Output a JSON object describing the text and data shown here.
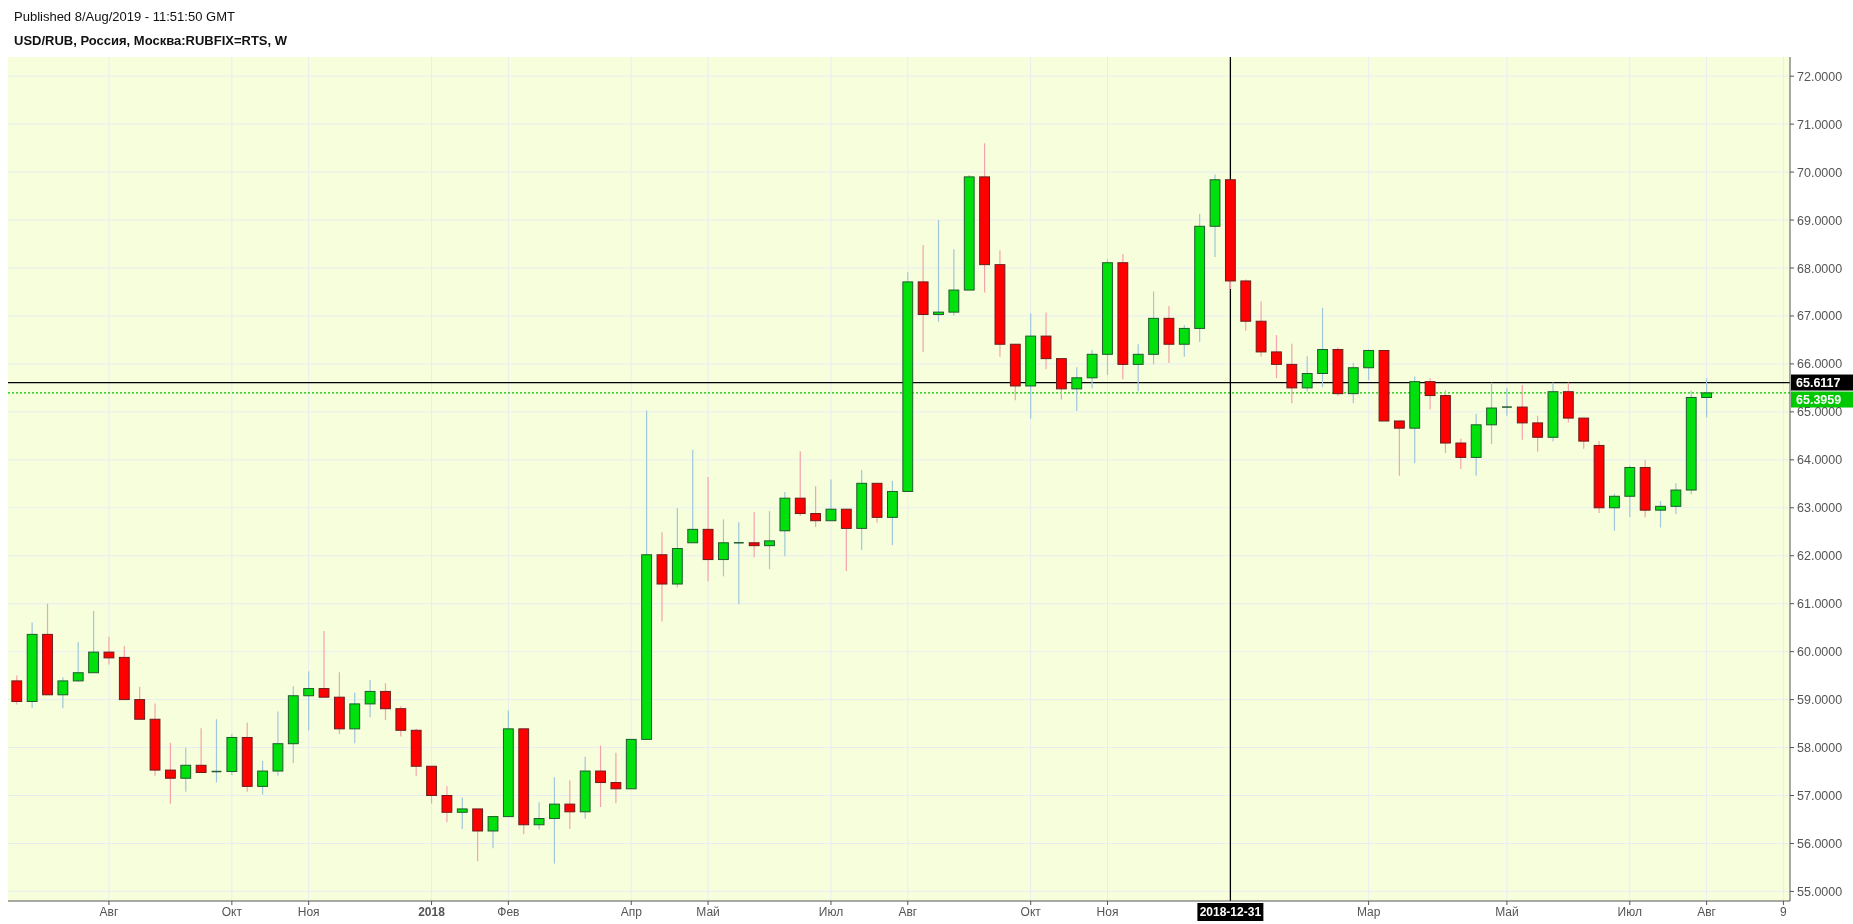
{
  "chart_data": {
    "type": "candlestick",
    "title": "USD/RUB, Россия, Москва:RUBFIX=RTS, W",
    "annotations": [
      "Published 8/Aug/2019 - 11:51:50 GMT"
    ],
    "x": [
      "2017-06-26",
      "2017-07-03",
      "2017-07-10",
      "2017-07-17",
      "2017-07-24",
      "2017-07-31",
      "2017-08-07",
      "2017-08-14",
      "2017-08-21",
      "2017-08-28",
      "2017-09-04",
      "2017-09-11",
      "2017-09-18",
      "2017-09-25",
      "2017-10-02",
      "2017-10-09",
      "2017-10-16",
      "2017-10-23",
      "2017-10-30",
      "2017-11-06",
      "2017-11-13",
      "2017-11-20",
      "2017-11-27",
      "2017-12-04",
      "2017-12-11",
      "2017-12-18",
      "2017-12-25",
      "2018-01-01",
      "2018-01-08",
      "2018-01-15",
      "2018-01-22",
      "2018-01-29",
      "2018-02-05",
      "2018-02-12",
      "2018-02-19",
      "2018-02-26",
      "2018-03-05",
      "2018-03-12",
      "2018-03-19",
      "2018-03-26",
      "2018-04-02",
      "2018-04-09",
      "2018-04-16",
      "2018-04-23",
      "2018-04-30",
      "2018-05-07",
      "2018-05-14",
      "2018-05-21",
      "2018-05-28",
      "2018-06-04",
      "2018-06-11",
      "2018-06-18",
      "2018-06-25",
      "2018-07-02",
      "2018-07-09",
      "2018-07-16",
      "2018-07-23",
      "2018-07-30",
      "2018-08-06",
      "2018-08-13",
      "2018-08-20",
      "2018-08-27",
      "2018-09-03",
      "2018-09-10",
      "2018-09-17",
      "2018-09-24",
      "2018-10-01",
      "2018-10-08",
      "2018-10-15",
      "2018-10-22",
      "2018-10-29",
      "2018-11-05",
      "2018-11-12",
      "2018-11-19",
      "2018-11-26",
      "2018-12-03",
      "2018-12-10",
      "2018-12-17",
      "2018-12-24",
      "2018-12-31",
      "2019-01-07",
      "2019-01-14",
      "2019-01-21",
      "2019-01-28",
      "2019-02-04",
      "2019-02-11",
      "2019-02-18",
      "2019-02-25",
      "2019-03-04",
      "2019-03-11",
      "2019-03-18",
      "2019-03-25",
      "2019-04-01",
      "2019-04-08",
      "2019-04-15",
      "2019-04-22",
      "2019-04-29",
      "2019-05-06",
      "2019-05-13",
      "2019-05-20",
      "2019-05-27",
      "2019-06-03",
      "2019-06-10",
      "2019-06-17",
      "2019-06-24",
      "2019-07-01",
      "2019-07-08",
      "2019-07-15",
      "2019-07-22",
      "2019-07-29",
      "2019-08-05"
    ],
    "ohlc": [
      [
        59.39,
        59.5,
        58.9,
        58.96
      ],
      [
        58.96,
        60.61,
        58.83,
        60.36
      ],
      [
        60.36,
        61.0,
        59.1,
        59.1
      ],
      [
        59.1,
        59.46,
        58.82,
        59.39
      ],
      [
        59.39,
        60.2,
        59.37,
        59.56
      ],
      [
        59.56,
        60.85,
        59.56,
        59.99
      ],
      [
        59.99,
        60.31,
        59.73,
        59.87
      ],
      [
        59.88,
        60.12,
        59.0,
        59.0
      ],
      [
        59.0,
        59.27,
        58.59,
        58.59
      ],
      [
        58.59,
        58.92,
        57.41,
        57.53
      ],
      [
        57.53,
        58.1,
        56.83,
        57.36
      ],
      [
        57.36,
        58.0,
        57.08,
        57.63
      ],
      [
        57.63,
        58.4,
        57.48,
        57.48
      ],
      [
        57.5,
        58.59,
        57.27,
        57.5
      ],
      [
        57.5,
        58.28,
        57.42,
        58.21
      ],
      [
        58.21,
        58.52,
        57.08,
        57.19
      ],
      [
        57.19,
        57.72,
        57.02,
        57.51
      ],
      [
        57.51,
        58.75,
        57.41,
        58.08
      ],
      [
        58.08,
        59.28,
        57.68,
        59.08
      ],
      [
        59.08,
        59.59,
        58.36,
        59.23
      ],
      [
        59.23,
        60.43,
        59.05,
        59.05
      ],
      [
        59.05,
        59.57,
        58.28,
        58.39
      ],
      [
        58.39,
        59.15,
        58.09,
        58.91
      ],
      [
        58.91,
        59.41,
        58.63,
        59.17
      ],
      [
        59.17,
        59.34,
        58.57,
        58.81
      ],
      [
        58.81,
        58.86,
        58.23,
        58.36
      ],
      [
        58.36,
        58.39,
        57.41,
        57.61
      ],
      [
        57.61,
        57.61,
        56.83,
        57.0
      ],
      [
        57.0,
        57.2,
        56.44,
        56.65
      ],
      [
        56.65,
        56.96,
        56.3,
        56.72
      ],
      [
        56.72,
        56.72,
        55.63,
        56.26
      ],
      [
        56.26,
        56.56,
        55.9,
        56.56
      ],
      [
        56.56,
        58.77,
        56.56,
        58.39
      ],
      [
        58.39,
        58.39,
        56.19,
        56.39
      ],
      [
        56.39,
        56.86,
        56.29,
        56.52
      ],
      [
        56.52,
        57.38,
        55.58,
        56.82
      ],
      [
        56.82,
        57.32,
        56.3,
        56.66
      ],
      [
        56.66,
        57.81,
        56.52,
        57.51
      ],
      [
        57.51,
        58.04,
        56.76,
        57.27
      ],
      [
        57.27,
        57.89,
        56.84,
        57.14
      ],
      [
        57.14,
        58.17,
        57.14,
        58.17
      ],
      [
        58.17,
        65.03,
        58.17,
        62.02
      ],
      [
        62.02,
        62.49,
        60.63,
        61.41
      ],
      [
        61.41,
        62.99,
        61.34,
        62.15
      ],
      [
        62.27,
        64.21,
        62.27,
        62.55
      ],
      [
        62.55,
        63.64,
        61.47,
        61.92
      ],
      [
        61.92,
        62.76,
        61.57,
        62.27
      ],
      [
        62.27,
        62.7,
        60.99,
        62.27
      ],
      [
        62.27,
        62.91,
        61.97,
        62.21
      ],
      [
        62.21,
        62.93,
        61.72,
        62.31
      ],
      [
        62.52,
        63.33,
        61.99,
        63.2
      ],
      [
        63.2,
        64.18,
        62.83,
        62.88
      ],
      [
        62.88,
        63.45,
        62.6,
        62.73
      ],
      [
        62.73,
        63.59,
        62.73,
        62.97
      ],
      [
        62.97,
        62.97,
        61.68,
        62.57
      ],
      [
        62.57,
        63.79,
        62.12,
        63.51
      ],
      [
        63.51,
        63.51,
        62.69,
        62.8
      ],
      [
        62.8,
        63.56,
        62.22,
        63.34
      ],
      [
        63.34,
        67.91,
        63.34,
        67.71
      ],
      [
        67.71,
        68.48,
        66.25,
        67.03
      ],
      [
        67.03,
        69.0,
        66.88,
        67.08
      ],
      [
        67.08,
        68.39,
        67.01,
        67.54
      ],
      [
        67.54,
        69.94,
        67.54,
        69.9
      ],
      [
        69.9,
        70.6,
        67.49,
        68.07
      ],
      [
        68.07,
        68.37,
        66.15,
        66.41
      ],
      [
        66.41,
        66.41,
        65.24,
        65.54
      ],
      [
        65.54,
        67.05,
        64.86,
        66.58
      ],
      [
        66.58,
        67.07,
        65.89,
        66.11
      ],
      [
        66.11,
        66.11,
        65.26,
        65.48
      ],
      [
        65.48,
        65.93,
        65.02,
        65.71
      ],
      [
        65.71,
        66.29,
        65.49,
        66.2
      ],
      [
        66.2,
        68.18,
        65.77,
        68.11
      ],
      [
        68.11,
        68.29,
        65.68,
        65.99
      ],
      [
        65.99,
        66.41,
        65.43,
        66.2
      ],
      [
        66.2,
        67.51,
        65.99,
        66.95
      ],
      [
        66.95,
        67.21,
        66.02,
        66.41
      ],
      [
        66.41,
        66.81,
        66.15,
        66.74
      ],
      [
        66.74,
        69.13,
        66.46,
        68.87
      ],
      [
        68.87,
        69.95,
        68.23,
        69.84
      ],
      [
        69.84,
        69.84,
        67.56,
        67.73
      ],
      [
        67.73,
        67.76,
        66.69,
        66.89
      ],
      [
        66.89,
        67.3,
        66.15,
        66.25
      ],
      [
        66.25,
        66.6,
        65.7,
        65.99
      ],
      [
        65.99,
        66.42,
        65.18,
        65.5
      ],
      [
        65.5,
        66.16,
        65.43,
        65.8
      ],
      [
        65.8,
        67.17,
        65.52,
        66.3
      ],
      [
        66.3,
        66.35,
        65.33,
        65.38
      ],
      [
        65.38,
        66.02,
        65.18,
        65.92
      ],
      [
        65.92,
        66.3,
        65.66,
        66.28
      ],
      [
        66.28,
        66.28,
        64.81,
        64.81
      ],
      [
        64.81,
        64.81,
        63.67,
        64.66
      ],
      [
        64.66,
        65.74,
        63.93,
        65.63
      ],
      [
        65.63,
        65.7,
        65.05,
        65.34
      ],
      [
        65.34,
        65.45,
        64.14,
        64.35
      ],
      [
        64.35,
        64.44,
        63.81,
        64.05
      ],
      [
        64.05,
        64.96,
        63.67,
        64.73
      ],
      [
        64.73,
        65.61,
        64.33,
        65.08
      ],
      [
        65.1,
        65.49,
        64.92,
        65.1
      ],
      [
        65.1,
        65.56,
        64.42,
        64.77
      ],
      [
        64.77,
        64.92,
        64.17,
        64.47
      ],
      [
        64.47,
        65.61,
        64.38,
        65.42
      ],
      [
        65.42,
        65.61,
        64.78,
        64.87
      ],
      [
        64.87,
        64.87,
        64.23,
        64.39
      ],
      [
        64.3,
        64.39,
        62.89,
        63.0
      ],
      [
        63.0,
        63.29,
        62.52,
        63.24
      ],
      [
        63.24,
        63.88,
        62.81,
        63.84
      ],
      [
        63.84,
        64.0,
        62.8,
        62.95
      ],
      [
        62.95,
        63.14,
        62.59,
        63.03
      ],
      [
        63.03,
        63.51,
        62.87,
        63.37
      ],
      [
        63.37,
        65.44,
        63.28,
        65.3
      ],
      [
        65.3,
        65.7,
        64.88,
        65.3959
      ]
    ],
    "xlim": [
      "2017-06-22",
      "2019-09-12"
    ],
    "xticks": [
      {
        "value": "2017-08-07",
        "label": "Авг"
      },
      {
        "value": "2017-10-02",
        "label": "Окт"
      },
      {
        "value": "2017-11-06",
        "label": "Ноя"
      },
      {
        "value": "2018-01-01",
        "label": "2018"
      },
      {
        "value": "2018-02-05",
        "label": "Фев"
      },
      {
        "value": "2018-04-02",
        "label": "Апр"
      },
      {
        "value": "2018-05-07",
        "label": "Май"
      },
      {
        "value": "2018-07-02",
        "label": "Июл"
      },
      {
        "value": "2018-08-06",
        "label": "Авг"
      },
      {
        "value": "2018-10-01",
        "label": "Окт"
      },
      {
        "value": "2018-11-05",
        "label": "Ноя"
      },
      {
        "value": "2019-03-04",
        "label": "Мар"
      },
      {
        "value": "2019-05-06",
        "label": "Май"
      },
      {
        "value": "2019-07-01",
        "label": "Июл"
      },
      {
        "value": "2019-08-05",
        "label": "Авг"
      },
      {
        "value": "2019-09-09",
        "label": "9"
      }
    ],
    "ylim": [
      54.8,
      72.4
    ],
    "yticks": [
      {
        "value": 55,
        "label": "55.0000"
      },
      {
        "value": 56,
        "label": "56.0000"
      },
      {
        "value": 57,
        "label": "57.0000"
      },
      {
        "value": 58,
        "label": "58.0000"
      },
      {
        "value": 59,
        "label": "59.0000"
      },
      {
        "value": 60,
        "label": "60.0000"
      },
      {
        "value": 61,
        "label": "61.0000"
      },
      {
        "value": 62,
        "label": "62.0000"
      },
      {
        "value": 63,
        "label": "63.0000"
      },
      {
        "value": 64,
        "label": "64.0000"
      },
      {
        "value": 65,
        "label": "65.0000"
      },
      {
        "value": 66,
        "label": "66.0000"
      },
      {
        "value": 67,
        "label": "67.0000"
      },
      {
        "value": 68,
        "label": "68.0000"
      },
      {
        "value": 69,
        "label": "69.0000"
      },
      {
        "value": 70,
        "label": "70.0000"
      },
      {
        "value": 71,
        "label": "71.0000"
      },
      {
        "value": 72,
        "label": "72.0000"
      }
    ],
    "ref_lines": [
      {
        "axis": "y",
        "value": 65.6117,
        "label": "65.6117",
        "color": "#000000",
        "line_style": "solid"
      },
      {
        "axis": "y",
        "value": 65.3959,
        "label": "65.3959",
        "color": "#00c800",
        "line_style": "dotted"
      },
      {
        "axis": "x",
        "value": "2018-12-31",
        "label": "2018-12-31",
        "color": "#000000",
        "line_style": "solid"
      }
    ],
    "grid": true
  }
}
